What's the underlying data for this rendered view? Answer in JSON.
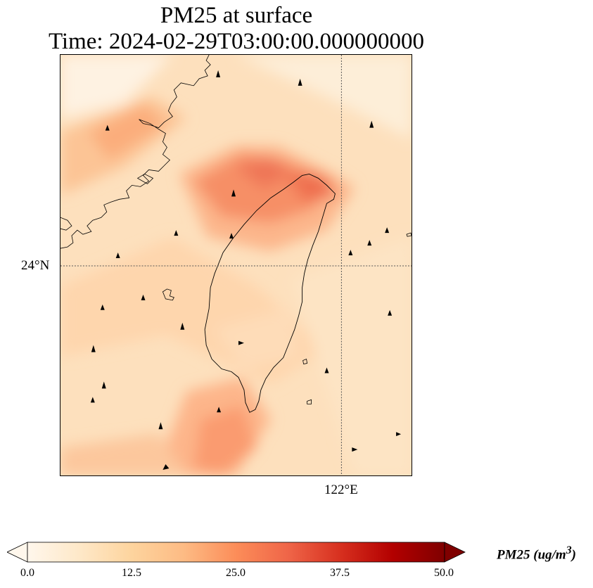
{
  "title": {
    "line1": "PM25 at surface",
    "line2": "Time: 2024-02-29T03:00:00.000000000"
  },
  "map": {
    "lat_label": "24°N",
    "lon_label": "122°E",
    "gridlines": "dotted"
  },
  "colorbar": {
    "cmap": "OrRd",
    "colors": [
      "#fff7ec",
      "#fee8c8",
      "#fdd49e",
      "#fdbb84",
      "#fc8d59",
      "#ef6548",
      "#d7301f",
      "#b30000",
      "#7f0000"
    ],
    "extend": "both",
    "ticks": [
      "0.0",
      "12.5",
      "25.0",
      "37.5",
      "50.0"
    ],
    "label_main": "PM25 (ug/m",
    "label_sup": "3",
    "label_end": ")"
  }
}
